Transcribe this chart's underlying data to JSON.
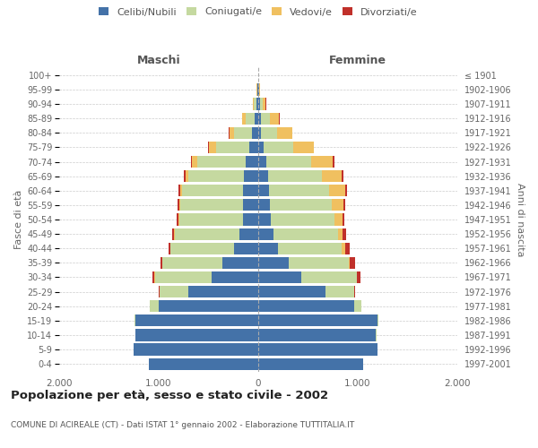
{
  "age_groups": [
    "0-4",
    "5-9",
    "10-14",
    "15-19",
    "20-24",
    "25-29",
    "30-34",
    "35-39",
    "40-44",
    "45-49",
    "50-54",
    "55-59",
    "60-64",
    "65-69",
    "70-74",
    "75-79",
    "80-84",
    "85-89",
    "90-94",
    "95-99",
    "100+"
  ],
  "birth_years": [
    "1997-2001",
    "1992-1996",
    "1987-1991",
    "1982-1986",
    "1977-1981",
    "1972-1976",
    "1967-1971",
    "1962-1966",
    "1957-1961",
    "1952-1956",
    "1947-1951",
    "1942-1946",
    "1937-1941",
    "1932-1936",
    "1927-1931",
    "1922-1926",
    "1917-1921",
    "1912-1916",
    "1907-1911",
    "1902-1906",
    "≤ 1901"
  ],
  "male_celibe": [
    1100,
    1250,
    1230,
    1230,
    1000,
    700,
    470,
    360,
    240,
    190,
    155,
    150,
    150,
    140,
    130,
    90,
    60,
    40,
    15,
    5,
    2
  ],
  "male_coniugato": [
    0,
    0,
    5,
    10,
    90,
    290,
    570,
    600,
    640,
    650,
    640,
    630,
    620,
    560,
    480,
    330,
    180,
    90,
    30,
    8,
    2
  ],
  "male_vedovo": [
    0,
    0,
    0,
    0,
    0,
    1,
    1,
    2,
    3,
    5,
    8,
    10,
    15,
    30,
    60,
    80,
    50,
    30,
    10,
    2,
    0
  ],
  "male_divorziato": [
    0,
    0,
    0,
    0,
    2,
    5,
    18,
    20,
    20,
    20,
    18,
    18,
    18,
    15,
    10,
    5,
    5,
    3,
    2,
    0,
    0
  ],
  "female_celibe": [
    1050,
    1200,
    1180,
    1200,
    960,
    680,
    430,
    310,
    200,
    150,
    125,
    120,
    110,
    100,
    80,
    55,
    30,
    30,
    15,
    5,
    2
  ],
  "female_coniugato": [
    0,
    0,
    5,
    8,
    75,
    280,
    560,
    600,
    640,
    650,
    640,
    620,
    600,
    540,
    450,
    300,
    160,
    90,
    30,
    8,
    2
  ],
  "female_vedovo": [
    0,
    0,
    0,
    0,
    1,
    3,
    5,
    10,
    30,
    50,
    80,
    120,
    160,
    200,
    220,
    200,
    150,
    90,
    30,
    5,
    0
  ],
  "female_divorziato": [
    0,
    0,
    0,
    0,
    3,
    8,
    35,
    50,
    45,
    30,
    20,
    18,
    18,
    15,
    12,
    8,
    5,
    3,
    2,
    0,
    0
  ],
  "color_celibe": "#4472a8",
  "color_coniugato": "#c5d9a0",
  "color_vedovo": "#f0c060",
  "color_divorziato": "#c0302a",
  "title": "Popolazione per età, sesso e stato civile - 2002",
  "subtitle": "COMUNE DI ACIREALE (CT) - Dati ISTAT 1° gennaio 2002 - Elaborazione TUTTITALIA.IT",
  "xlabel_left": "Maschi",
  "xlabel_right": "Femmine",
  "ylabel_left": "Fasce di età",
  "ylabel_right": "Anni di nascita",
  "xlim": 2000
}
